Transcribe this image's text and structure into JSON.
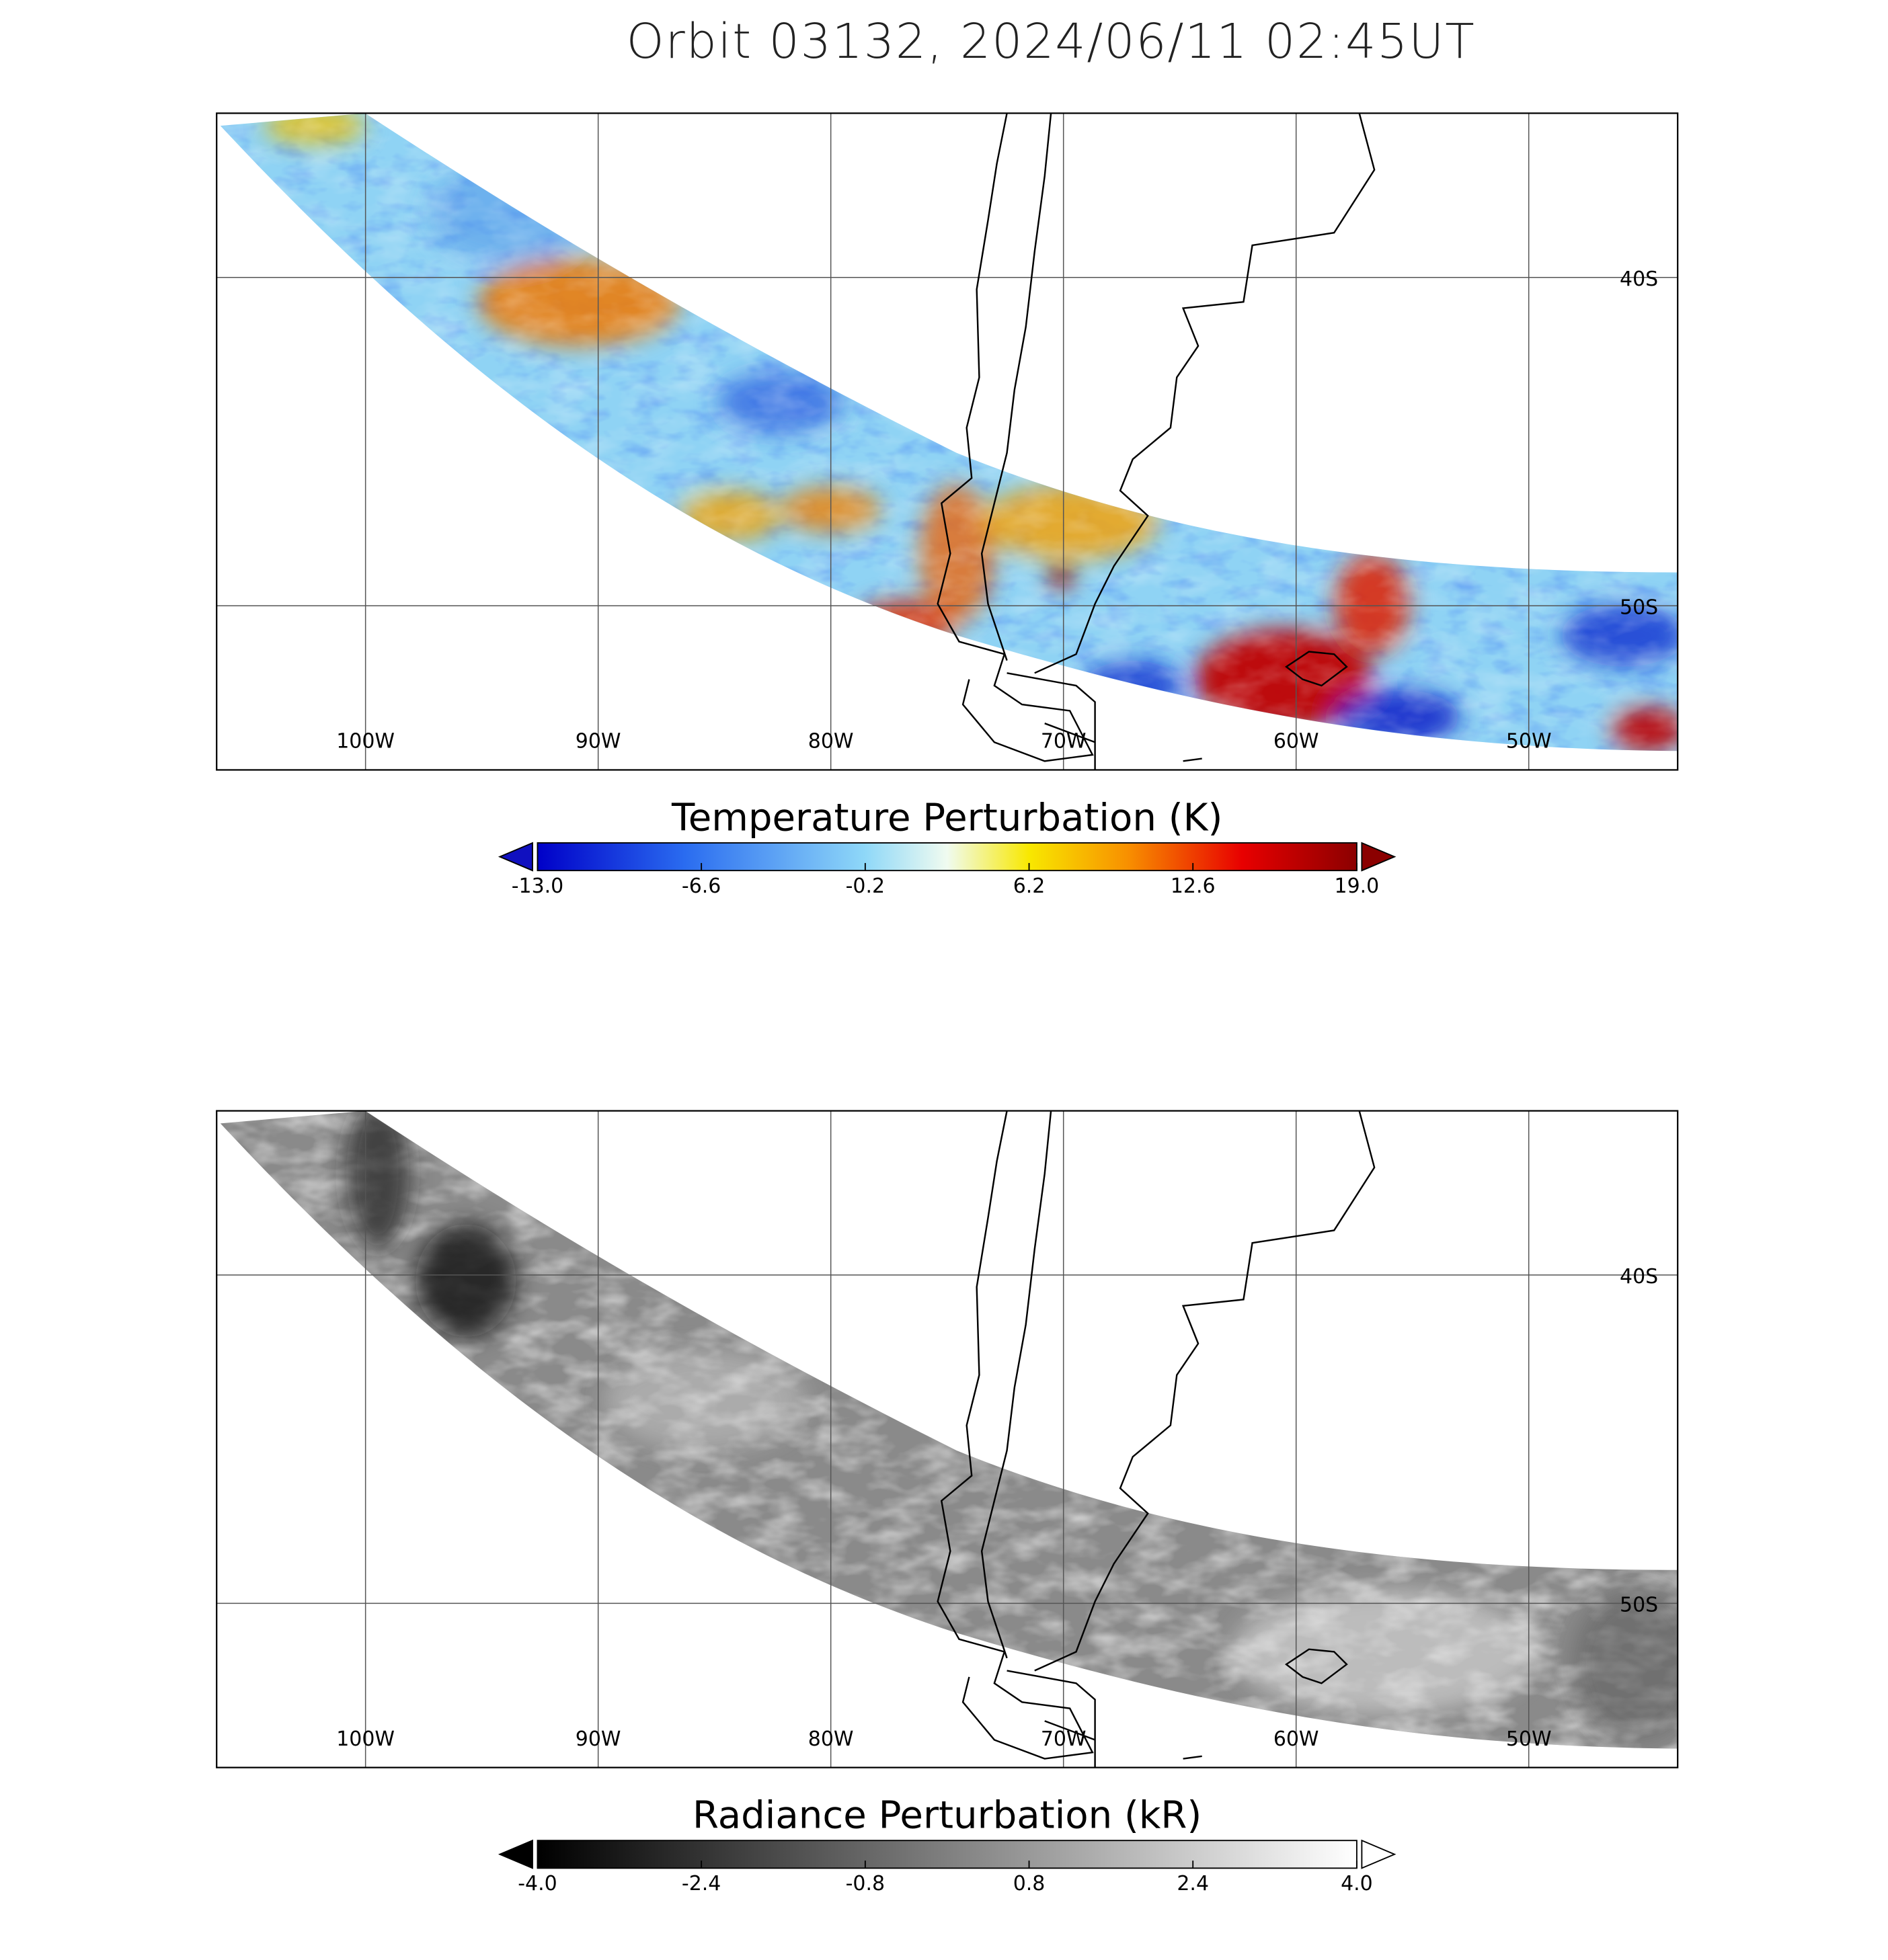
{
  "title": "Orbit 03132, 2024/06/11 02:45UT",
  "panels": [
    {
      "lonlim": [
        -106.4,
        -43.6
      ],
      "latlim": [
        -55,
        -35
      ],
      "lon_ticks": [
        {
          "value": -100,
          "label": "100W"
        },
        {
          "value": -90,
          "label": "90W"
        },
        {
          "value": -80,
          "label": "80W"
        },
        {
          "value": -70,
          "label": "70W"
        },
        {
          "value": -60,
          "label": "60W"
        },
        {
          "value": -50,
          "label": "50W"
        }
      ],
      "lat_ticks": [
        {
          "value": -40,
          "label": "40S"
        },
        {
          "value": -50,
          "label": "50S"
        }
      ],
      "colorbar": {
        "title": "Temperature Perturbation (K)",
        "range": [
          -13,
          19
        ],
        "ticks": [
          {
            "value": -13,
            "label": "-13.0"
          },
          {
            "value": -6.6,
            "label": "-6.6"
          },
          {
            "value": -0.2,
            "label": "-0.2"
          },
          {
            "value": 6.2,
            "label": "6.2"
          },
          {
            "value": 12.6,
            "label": "12.6"
          },
          {
            "value": 19,
            "label": "19.0"
          }
        ]
      }
    },
    {
      "lonlim": [
        -106.4,
        -43.6
      ],
      "latlim": [
        -55,
        -35
      ],
      "lon_ticks": [
        {
          "value": -100,
          "label": "100W"
        },
        {
          "value": -90,
          "label": "90W"
        },
        {
          "value": -80,
          "label": "80W"
        },
        {
          "value": -70,
          "label": "70W"
        },
        {
          "value": -60,
          "label": "60W"
        },
        {
          "value": -50,
          "label": "50W"
        }
      ],
      "lat_ticks": [
        {
          "value": -40,
          "label": "40S"
        },
        {
          "value": -50,
          "label": "50S"
        }
      ],
      "colorbar": {
        "title": "Radiance Perturbation (kR)",
        "range": [
          -4,
          4
        ],
        "ticks": [
          {
            "value": -4,
            "label": "-4.0"
          },
          {
            "value": -2.4,
            "label": "-2.4"
          },
          {
            "value": -0.8,
            "label": "-0.8"
          },
          {
            "value": 0.8,
            "label": "0.8"
          },
          {
            "value": 2.4,
            "label": "2.4"
          },
          {
            "value": 4,
            "label": "4.0"
          }
        ]
      }
    }
  ]
}
